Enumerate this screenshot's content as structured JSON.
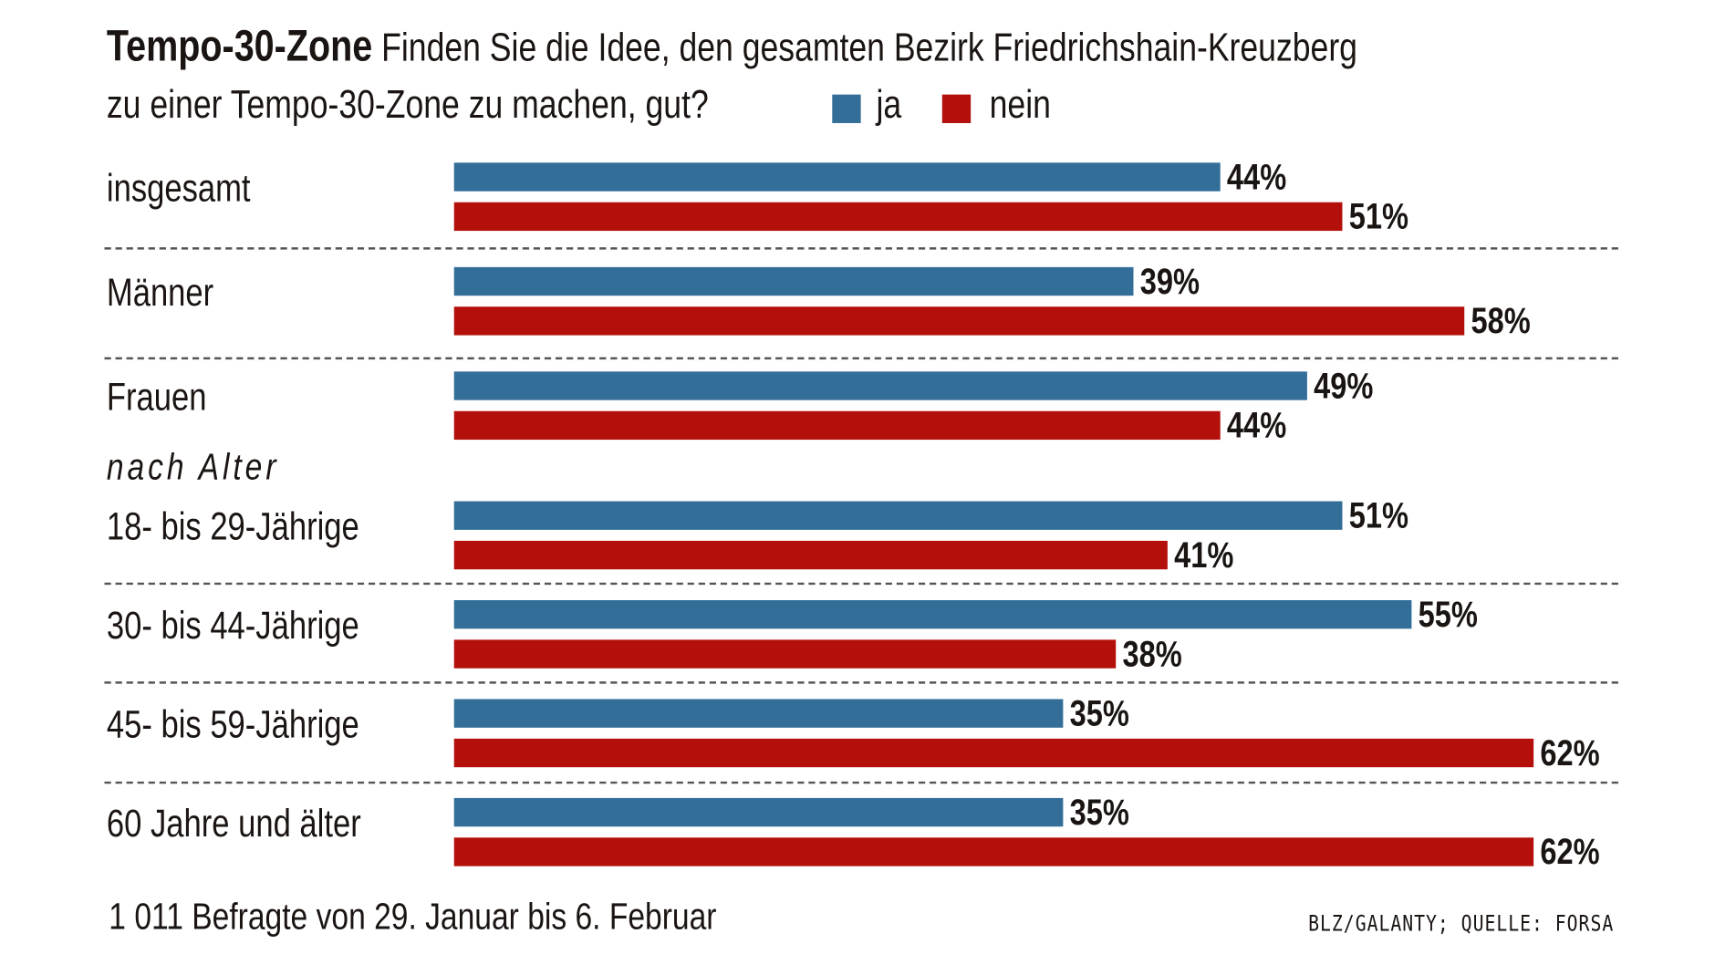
{
  "header": {
    "title_bold": "Tempo-30-Zone",
    "title_line1": "Finden Sie die Idee, den gesamten Bezirk Friedrichshain-Kreuzberg",
    "title_line2": "zu einer Tempo-30-Zone zu machen, gut?"
  },
  "section_label": "nach Alter",
  "footer": {
    "note": "1 011 Befragte von 29. Januar bis 6. Februar",
    "source": "BLZ/GALANTY; QUELLE: FORSA"
  },
  "chart_data": {
    "type": "bar",
    "orientation": "horizontal",
    "unit": "%",
    "categories": [
      "insgesamt",
      "Männer",
      "Frauen",
      "18- bis 29-Jährige",
      "30- bis 44-Jährige",
      "45- bis 59-Jährige",
      "60 Jahre und älter"
    ],
    "series": [
      {
        "name": "ja",
        "color": "#336e99",
        "values": [
          44,
          39,
          49,
          51,
          55,
          35,
          35
        ],
        "labels": [
          "44%",
          "39%",
          "49%",
          "51%",
          "55%",
          "35%",
          "35%"
        ]
      },
      {
        "name": "nein",
        "color": "#b3100c",
        "values": [
          51,
          58,
          44,
          41,
          38,
          62,
          62
        ],
        "labels": [
          "51%",
          "58%",
          "44%",
          "41%",
          "38%",
          "62%",
          "62%"
        ]
      }
    ],
    "legend": "top",
    "grid": false
  }
}
